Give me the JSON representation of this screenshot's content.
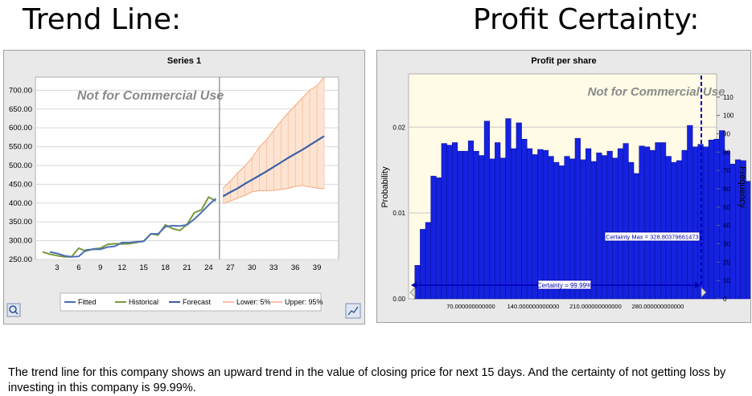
{
  "headings": {
    "left": "Trend Line:",
    "right": "Profit Certainty:"
  },
  "caption": "The trend line for this company shows an upward trend in the value of closing price for next 15 days. And the certainty of not getting loss by investing in this company is 99.99%.",
  "chart_data": [
    {
      "type": "line",
      "title": "Series 1",
      "watermark": "Not for Commercial Use",
      "xlim": [
        0,
        42
      ],
      "ylim": [
        250,
        735
      ],
      "x_ticks": [
        3,
        6,
        9,
        12,
        15,
        18,
        21,
        24,
        27,
        30,
        33,
        36,
        39
      ],
      "y_ticks": [
        "250.00",
        "300.00",
        "350.00",
        "400.00",
        "450.00",
        "500.00",
        "550.00",
        "600.00",
        "650.00",
        "700.00"
      ],
      "forecast_start": 25.5,
      "legend": [
        "Fitted",
        "Historical",
        "Forecast",
        "Lower: 5%",
        "Upper: 95%"
      ],
      "colors": {
        "fitted": "#4a6fb5",
        "historical": "#7a9a3a",
        "forecast": "#3a5fa8",
        "band": "#f5a57a",
        "band_fill": "#fde4d2",
        "divider": "#707070"
      },
      "series": [
        {
          "name": "Historical",
          "x": [
            1,
            2,
            3,
            4,
            5,
            6,
            7,
            8,
            9,
            10,
            11,
            12,
            13,
            14,
            15,
            16,
            17,
            18,
            19,
            20,
            21,
            22,
            23,
            24,
            25
          ],
          "values": [
            270,
            264,
            260,
            257,
            257,
            280,
            272,
            278,
            280,
            290,
            292,
            291,
            292,
            295,
            299,
            318,
            315,
            342,
            332,
            327,
            343,
            374,
            382,
            416,
            405
          ]
        },
        {
          "name": "Fitted",
          "x": [
            2,
            3,
            4,
            5,
            6,
            7,
            8,
            9,
            10,
            11,
            12,
            13,
            14,
            15,
            16,
            17,
            18,
            19,
            20,
            21,
            22,
            23,
            24,
            25
          ],
          "values": [
            270,
            266,
            260,
            257,
            258,
            275,
            277,
            277,
            283,
            285,
            295,
            295,
            297,
            298,
            318,
            318,
            337,
            340,
            339,
            342,
            357,
            375,
            395,
            412
          ]
        },
        {
          "name": "Forecast",
          "x": [
            26,
            27,
            28,
            29,
            30,
            31,
            32,
            33,
            34,
            35,
            36,
            37,
            38,
            39,
            40
          ],
          "values": [
            418,
            429,
            439,
            451,
            462,
            473,
            484,
            496,
            508,
            520,
            531,
            542,
            554,
            566,
            578
          ]
        },
        {
          "name": "Lower: 5%",
          "x": [
            26,
            27,
            28,
            29,
            30,
            31,
            32,
            33,
            34,
            35,
            36,
            37,
            38,
            39,
            40
          ],
          "values": [
            399,
            405,
            413,
            420,
            430,
            433,
            433,
            434,
            436,
            439,
            444,
            447,
            443,
            440,
            438
          ]
        },
        {
          "name": "Upper: 95%",
          "x": [
            26,
            27,
            28,
            29,
            30,
            31,
            32,
            33,
            34,
            35,
            36,
            37,
            38,
            39,
            40
          ],
          "values": [
            440,
            458,
            480,
            498,
            520,
            548,
            568,
            593,
            617,
            640,
            660,
            680,
            700,
            712,
            735
          ]
        }
      ]
    },
    {
      "type": "bar",
      "title": "Profit per share",
      "watermark": "Not for Commercial Use",
      "ylabel": "Probability",
      "y2label": "Frequency",
      "xlim": [
        0,
        346
      ],
      "ylim": [
        0,
        0.0262
      ],
      "x_ticks": [
        70,
        140,
        210,
        280
      ],
      "x_tick_labels": [
        "70.000000000000",
        "140.000000000000",
        "210.000000000000",
        "280.000000000000"
      ],
      "y_ticks": [
        0.01,
        0.02
      ],
      "y_tick_labels": [
        "0.01",
        "0.02"
      ],
      "y_zero_label": "0.00",
      "y2_ticks": [
        0,
        10,
        20,
        30,
        40,
        50,
        60,
        70,
        80,
        90,
        100,
        110
      ],
      "bin_width": 6,
      "bins_start": 7,
      "values": [
        0.0039,
        0.0081,
        0.0089,
        0.0143,
        0.0141,
        0.0181,
        0.0179,
        0.0182,
        0.0172,
        0.0172,
        0.0184,
        0.0172,
        0.0167,
        0.0207,
        0.0163,
        0.0182,
        0.0164,
        0.021,
        0.0175,
        0.0205,
        0.0186,
        0.0175,
        0.0168,
        0.0174,
        0.0173,
        0.0166,
        0.0159,
        0.0155,
        0.0166,
        0.0163,
        0.0187,
        0.0162,
        0.0175,
        0.016,
        0.017,
        0.0167,
        0.0172,
        0.0164,
        0.0175,
        0.0181,
        0.0159,
        0.0146,
        0.0178,
        0.0177,
        0.0173,
        0.0182,
        0.0182,
        0.0166,
        0.0159,
        0.0161,
        0.0173,
        0.0202,
        0.0177,
        0.018,
        0.0177,
        0.0185,
        0.0186,
        0.0196,
        0.0172,
        0.0157,
        0.0162,
        0.0161,
        0.0137,
        0.0182,
        0.0173,
        0.0176,
        0.0166,
        0.0171,
        0.0164,
        0.0169,
        0.0168,
        0.0202,
        0.0155,
        0.0205,
        0.019,
        0.0184,
        0.0192,
        0.0164,
        0.0152,
        0.0158,
        0.0184,
        0.0166,
        0.0173,
        0.0147,
        0.0117,
        0.0095,
        0.0084,
        0.0057
      ],
      "certainty_label": "Certainty = 99.99%",
      "certainty_max_label": "Certainty Max = 328.80379661473",
      "certainty_max": 328.8,
      "colors": {
        "bar": "#1522e0",
        "bar_edge": "#0a0f90",
        "plot_bg": "#fffbe6",
        "marker": "#0000b0"
      }
    }
  ]
}
